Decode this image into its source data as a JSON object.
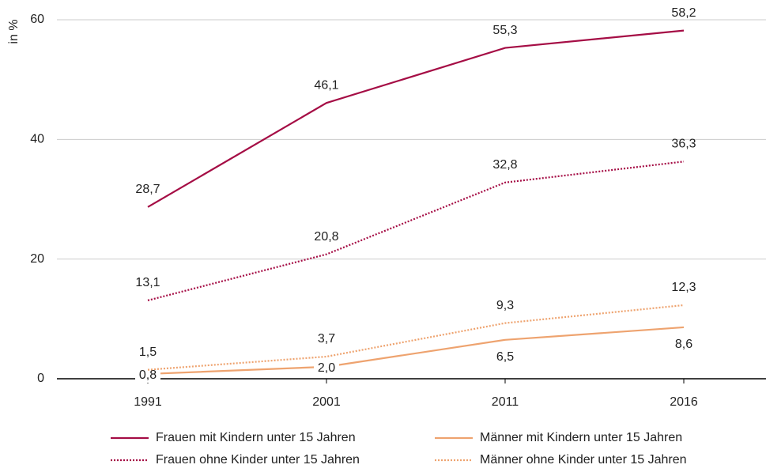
{
  "chart_data": {
    "type": "line",
    "y_axis_label": "in %",
    "categories": [
      "1991",
      "2001",
      "2011",
      "2016"
    ],
    "series": [
      {
        "name": "Frauen mit Kindern unter 15 Jahren",
        "color": "#a50d45",
        "line_style": "solid",
        "values": [
          28.7,
          46.1,
          55.3,
          58.2
        ],
        "value_labels": [
          "28,7",
          "46,1",
          "55,3",
          "58,2"
        ]
      },
      {
        "name": "Männer mit Kindern unter 15 Jahren",
        "color": "#eea36f",
        "line_style": "solid",
        "values": [
          0.8,
          2.0,
          6.5,
          8.6
        ],
        "value_labels": [
          "0,8",
          "2,0",
          "6,5",
          "8,6"
        ]
      },
      {
        "name": "Frauen ohne Kinder unter 15 Jahren",
        "color": "#a50d45",
        "line_style": "dotted",
        "values": [
          13.1,
          20.8,
          32.8,
          36.3
        ],
        "value_labels": [
          "13,1",
          "20,8",
          "32,8",
          "36,3"
        ]
      },
      {
        "name": "Männer ohne Kinder unter 15 Jahren",
        "color": "#eea36f",
        "line_style": "dotted",
        "values": [
          1.5,
          3.7,
          9.3,
          12.3
        ],
        "value_labels": [
          "1,5",
          "3,7",
          "9,3",
          "12,3"
        ]
      }
    ],
    "ylim": [
      0,
      60
    ],
    "yticks": [
      0,
      20,
      40,
      60
    ],
    "grid": true
  }
}
